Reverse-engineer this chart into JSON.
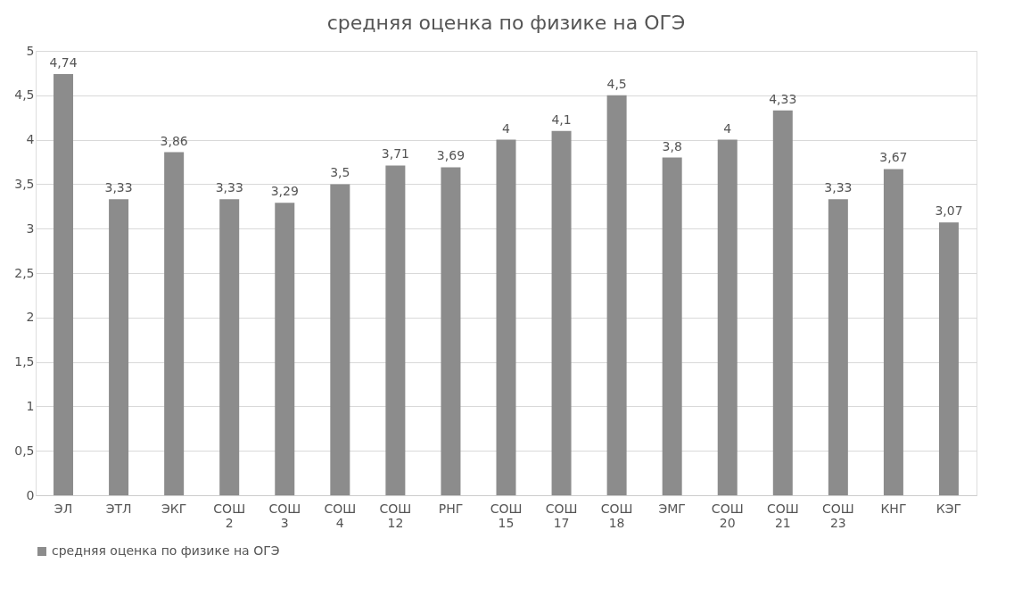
{
  "chart_data": {
    "type": "bar",
    "title": "средняя оценка по физике на ОГЭ",
    "categories": [
      "ЭЛ",
      "ЭТЛ",
      "ЭКГ",
      "СОШ 2",
      "СОШ 3",
      "СОШ 4",
      "СОШ 12",
      "РНГ",
      "СОШ 15",
      "СОШ 17",
      "СОШ 18",
      "ЭМГ",
      "СОШ 20",
      "СОШ 21",
      "СОШ 23",
      "КНГ",
      "КЭГ"
    ],
    "series": [
      {
        "name": "средняя оценка по физике на ОГЭ",
        "color": "#8c8c8c",
        "values": [
          4.74,
          3.33,
          3.86,
          3.33,
          3.29,
          3.5,
          3.71,
          3.69,
          4,
          4.1,
          4.5,
          3.8,
          4,
          4.33,
          3.33,
          3.67,
          3.07
        ],
        "value_labels": [
          "4,74",
          "3,33",
          "3,86",
          "3,33",
          "3,29",
          "3,5",
          "3,71",
          "3,69",
          "4",
          "4,1",
          "4,5",
          "3,8",
          "4",
          "4,33",
          "3,33",
          "3,67",
          "3,07"
        ]
      }
    ],
    "ylim": [
      0,
      5
    ],
    "yticks": [
      0,
      {
        "value": 0.5,
        "label": "0,5"
      },
      1,
      {
        "value": 1.5,
        "label": "1,5"
      },
      2,
      {
        "value": 2.5,
        "label": "2,5"
      },
      3,
      {
        "value": 3.5,
        "label": "3,5"
      },
      4,
      {
        "value": 4.5,
        "label": "4,5"
      },
      5
    ],
    "grid": "y",
    "legend": "bottom"
  }
}
